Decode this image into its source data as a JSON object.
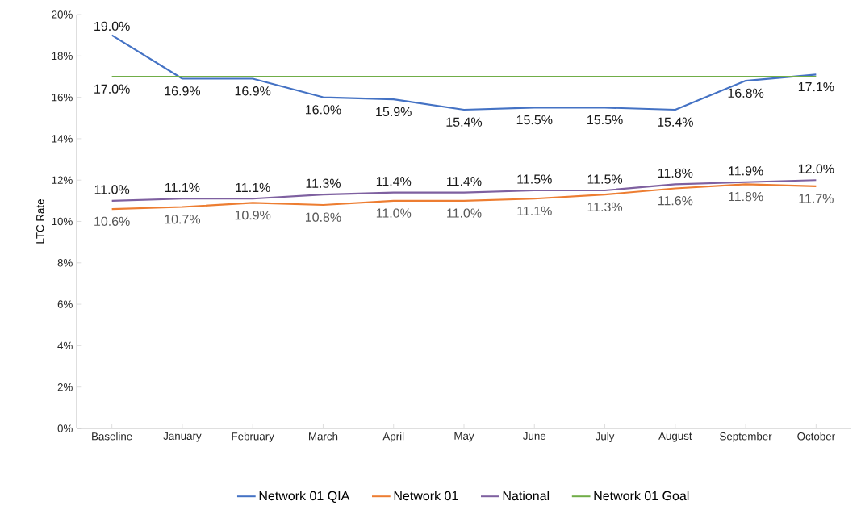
{
  "chart_data": {
    "type": "line",
    "ylabel": "LTC Rate",
    "categories": [
      "Baseline",
      "January",
      "February",
      "March",
      "April",
      "May",
      "June",
      "July",
      "August",
      "September",
      "October"
    ],
    "series": [
      {
        "name": "Network 01 QIA",
        "color": "#4472c4",
        "values": [
          19.0,
          16.9,
          16.9,
          16.0,
          15.9,
          15.4,
          15.5,
          15.5,
          15.4,
          16.8,
          17.1
        ],
        "value_labels": [
          "19.0%",
          "16.9%",
          "16.9%",
          "16.0%",
          "15.9%",
          "15.4%",
          "15.5%",
          "15.5%",
          "15.4%",
          "16.8%",
          "17.1%"
        ]
      },
      {
        "name": "Network 01",
        "color": "#ed7d31",
        "values": [
          10.6,
          10.7,
          10.9,
          10.8,
          11.0,
          11.0,
          11.1,
          11.3,
          11.6,
          11.8,
          11.7
        ],
        "value_labels": [
          "10.6%",
          "10.7%",
          "10.9%",
          "10.8%",
          "11.0%",
          "11.0%",
          "11.1%",
          "11.3%",
          "11.6%",
          "11.8%",
          "11.7%"
        ]
      },
      {
        "name": "National",
        "color": "#7e60a0",
        "values": [
          11.0,
          11.1,
          11.1,
          11.3,
          11.4,
          11.4,
          11.5,
          11.5,
          11.8,
          11.9,
          12.0
        ],
        "value_labels": [
          "11.0%",
          "11.1%",
          "11.1%",
          "11.3%",
          "11.4%",
          "11.4%",
          "11.5%",
          "11.5%",
          "11.8%",
          "11.9%",
          "12.0%"
        ]
      },
      {
        "name": "Network 01 Goal",
        "color": "#70ad47",
        "values": [
          17.0,
          17.0,
          17.0,
          17.0,
          17.0,
          17.0,
          17.0,
          17.0,
          17.0,
          17.0,
          17.0
        ],
        "value_labels": [
          "17.0%",
          null,
          null,
          null,
          null,
          null,
          null,
          null,
          null,
          null,
          null
        ]
      }
    ],
    "ylim": [
      0,
      20
    ],
    "yticks": [
      {
        "value": 0,
        "label": "0%"
      },
      {
        "value": 2,
        "label": "2%"
      },
      {
        "value": 4,
        "label": "4%"
      },
      {
        "value": 6,
        "label": "6%"
      },
      {
        "value": 8,
        "label": "8%"
      },
      {
        "value": 10,
        "label": "10%"
      },
      {
        "value": 12,
        "label": "12%"
      },
      {
        "value": 14,
        "label": "14%"
      },
      {
        "value": 16,
        "label": "16%"
      },
      {
        "value": 18,
        "label": "18%"
      },
      {
        "value": 20,
        "label": "20%"
      }
    ],
    "grid": false,
    "legend": "bottom",
    "marker": "none",
    "line_style": "solid"
  }
}
